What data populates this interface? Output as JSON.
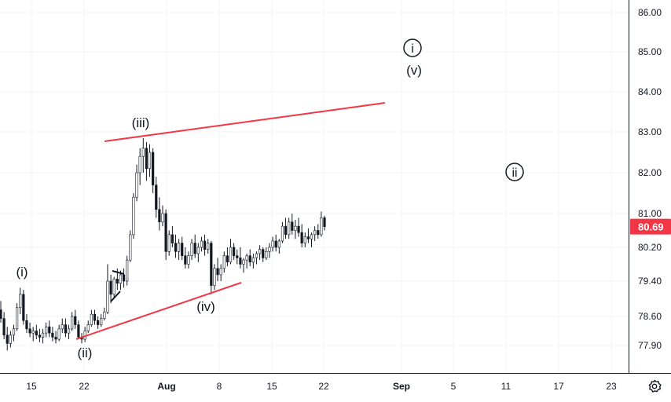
{
  "colors": {
    "up": "#26a69a",
    "down": "#ef5350",
    "candle_dark": "#131722",
    "trendline": "#f23645",
    "price_badge": "#f23645",
    "grid": "#f0f3fa",
    "axis": "#131722"
  },
  "icons": {
    "settings": "gear-icon"
  },
  "chart_data": {
    "type": "candlestick",
    "title": "",
    "xlabel": "",
    "ylabel": "",
    "ylim": [
      77.5,
      86.3
    ],
    "price_scale_ticks": [
      "86.00",
      "85.00",
      "84.00",
      "83.00",
      "82.00",
      "81.00",
      "80.20",
      "79.40",
      "78.60",
      "77.90"
    ],
    "price_scale_values": [
      86.0,
      85.0,
      84.0,
      83.0,
      82.0,
      81.0,
      80.2,
      79.4,
      78.6,
      77.9
    ],
    "time_axis_ticks": [
      "15",
      "22",
      "Aug",
      "8",
      "15",
      "22",
      "Sep",
      "5",
      "11",
      "17",
      "23"
    ],
    "last_price": "80.69",
    "grid": true,
    "series": [
      {
        "values": [
          [
            78.75,
            78.95,
            78.45,
            78.55
          ],
          [
            78.55,
            78.7,
            78.05,
            78.15
          ],
          [
            78.15,
            78.35,
            77.78,
            77.95
          ],
          [
            77.95,
            78.25,
            77.85,
            78.15
          ],
          [
            78.15,
            78.4,
            78.0,
            78.3
          ],
          [
            78.3,
            78.9,
            78.25,
            78.8
          ],
          [
            78.8,
            79.25,
            78.65,
            79.1
          ],
          [
            79.1,
            79.2,
            78.4,
            78.5
          ],
          [
            78.5,
            78.65,
            78.2,
            78.3
          ],
          [
            78.3,
            78.45,
            78.1,
            78.2
          ],
          [
            78.2,
            78.35,
            78.0,
            78.25
          ],
          [
            78.25,
            78.4,
            78.05,
            78.15
          ],
          [
            78.15,
            78.3,
            77.98,
            78.1
          ],
          [
            78.1,
            78.3,
            77.95,
            78.2
          ],
          [
            78.2,
            78.45,
            78.1,
            78.35
          ],
          [
            78.35,
            78.5,
            78.1,
            78.2
          ],
          [
            78.2,
            78.35,
            78.0,
            78.1
          ],
          [
            78.1,
            78.25,
            77.95,
            78.05
          ],
          [
            78.05,
            78.4,
            78.0,
            78.3
          ],
          [
            78.3,
            78.55,
            78.2,
            78.4
          ],
          [
            78.4,
            78.55,
            78.1,
            78.2
          ],
          [
            78.2,
            78.4,
            78.05,
            78.3
          ],
          [
            78.3,
            78.7,
            78.25,
            78.6
          ],
          [
            78.6,
            78.75,
            78.3,
            78.4
          ],
          [
            78.4,
            78.5,
            78.05,
            78.1
          ],
          [
            78.1,
            78.2,
            77.95,
            78.05
          ],
          [
            78.05,
            78.35,
            77.98,
            78.25
          ],
          [
            78.25,
            78.5,
            78.2,
            78.4
          ],
          [
            78.4,
            78.75,
            78.35,
            78.65
          ],
          [
            78.65,
            78.75,
            78.4,
            78.5
          ],
          [
            78.5,
            78.6,
            78.3,
            78.4
          ],
          [
            78.4,
            78.65,
            78.35,
            78.55
          ],
          [
            78.55,
            78.8,
            78.5,
            78.7
          ],
          [
            78.7,
            79.8,
            78.65,
            79.4
          ],
          [
            79.4,
            79.55,
            78.9,
            79.1
          ],
          [
            79.1,
            79.5,
            79.0,
            79.45
          ],
          [
            79.45,
            79.7,
            79.2,
            79.35
          ],
          [
            79.35,
            79.65,
            79.2,
            79.55
          ],
          [
            79.55,
            79.7,
            79.25,
            79.4
          ],
          [
            79.4,
            80.0,
            79.3,
            79.9
          ],
          [
            79.9,
            80.6,
            79.85,
            80.5
          ],
          [
            80.5,
            81.5,
            80.4,
            81.4
          ],
          [
            81.4,
            82.2,
            81.3,
            82.0
          ],
          [
            82.0,
            82.6,
            81.7,
            82.4
          ],
          [
            82.4,
            82.85,
            82.0,
            82.6
          ],
          [
            82.6,
            82.75,
            81.8,
            82.1
          ],
          [
            82.1,
            82.7,
            81.9,
            82.5
          ],
          [
            82.5,
            82.6,
            81.5,
            81.7
          ],
          [
            81.7,
            81.9,
            80.9,
            81.1
          ],
          [
            81.1,
            81.4,
            80.6,
            80.8
          ],
          [
            80.8,
            81.2,
            80.7,
            81.0
          ],
          [
            81.0,
            81.1,
            79.9,
            80.1
          ],
          [
            80.1,
            80.6,
            80.0,
            80.5
          ],
          [
            80.5,
            80.7,
            80.2,
            80.3
          ],
          [
            80.3,
            80.5,
            79.95,
            80.1
          ],
          [
            80.1,
            80.4,
            79.9,
            80.3
          ],
          [
            80.3,
            80.45,
            79.9,
            80.0
          ],
          [
            80.0,
            80.2,
            79.7,
            79.8
          ],
          [
            79.8,
            80.1,
            79.7,
            80.0
          ],
          [
            80.0,
            80.4,
            79.9,
            80.3
          ],
          [
            80.3,
            80.5,
            79.95,
            80.05
          ],
          [
            80.05,
            80.3,
            79.85,
            80.2
          ],
          [
            80.2,
            80.45,
            80.1,
            80.35
          ],
          [
            80.35,
            80.5,
            80.0,
            80.15
          ],
          [
            80.15,
            80.4,
            80.05,
            80.3
          ],
          [
            80.3,
            80.35,
            79.1,
            79.3
          ],
          [
            79.3,
            79.8,
            79.2,
            79.7
          ],
          [
            79.7,
            79.95,
            79.4,
            79.55
          ],
          [
            79.55,
            79.8,
            79.4,
            79.7
          ],
          [
            79.7,
            80.1,
            79.6,
            80.0
          ],
          [
            80.0,
            80.2,
            79.75,
            79.85
          ],
          [
            79.85,
            80.4,
            79.8,
            80.2
          ],
          [
            80.2,
            80.3,
            79.9,
            80.0
          ],
          [
            80.0,
            80.15,
            79.8,
            79.95
          ],
          [
            79.95,
            80.2,
            79.7,
            79.8
          ],
          [
            79.8,
            79.95,
            79.6,
            79.9
          ],
          [
            79.9,
            80.05,
            79.7,
            80.0
          ],
          [
            80.0,
            80.15,
            79.75,
            79.85
          ],
          [
            79.85,
            80.05,
            79.7,
            79.95
          ],
          [
            79.95,
            80.1,
            79.8,
            80.05
          ],
          [
            80.05,
            80.25,
            79.9,
            80.15
          ],
          [
            80.15,
            80.2,
            79.85,
            79.95
          ],
          [
            79.95,
            80.2,
            79.9,
            80.1
          ],
          [
            80.1,
            80.3,
            79.95,
            80.2
          ],
          [
            80.2,
            80.45,
            80.1,
            80.35
          ],
          [
            80.35,
            80.5,
            80.1,
            80.2
          ],
          [
            80.2,
            80.4,
            80.05,
            80.35
          ],
          [
            80.35,
            80.8,
            80.3,
            80.7
          ],
          [
            80.7,
            80.9,
            80.4,
            80.5
          ],
          [
            80.5,
            80.9,
            80.4,
            80.8
          ],
          [
            80.8,
            81.0,
            80.5,
            80.6
          ],
          [
            80.6,
            80.85,
            80.4,
            80.7
          ],
          [
            80.7,
            80.9,
            80.45,
            80.55
          ],
          [
            80.55,
            80.75,
            80.2,
            80.3
          ],
          [
            80.3,
            80.55,
            80.2,
            80.45
          ],
          [
            80.45,
            80.65,
            80.3,
            80.4
          ],
          [
            80.4,
            80.55,
            80.2,
            80.5
          ],
          [
            80.5,
            80.7,
            80.35,
            80.6
          ],
          [
            80.6,
            80.75,
            80.4,
            80.5
          ],
          [
            80.5,
            81.05,
            80.45,
            80.9
          ],
          [
            80.9,
            80.95,
            80.6,
            80.69
          ]
        ]
      }
    ],
    "annotations": [
      {
        "label": "(i)"
      },
      {
        "label": "(ii)"
      },
      {
        "label": "(iii)"
      },
      {
        "label": "(iv)"
      },
      {
        "label": "(v)"
      },
      {
        "label": "i",
        "circled": true
      },
      {
        "label": "ii",
        "circled": true
      }
    ]
  }
}
